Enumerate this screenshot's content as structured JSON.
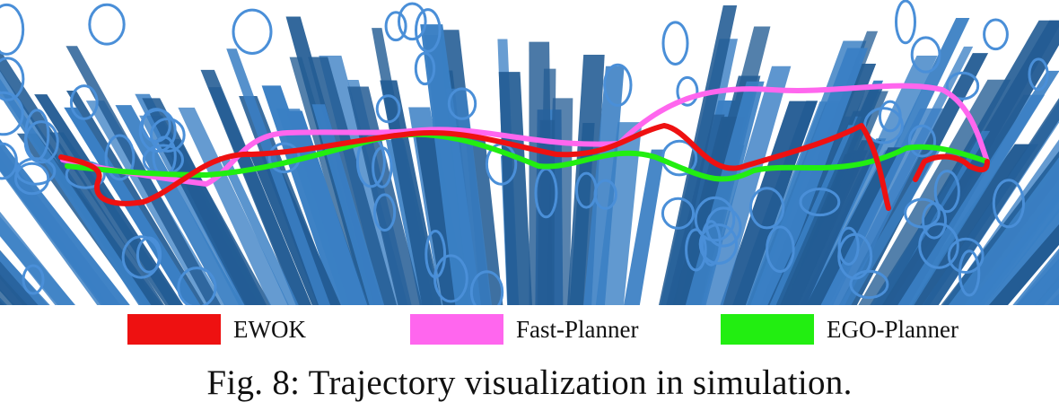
{
  "figure": {
    "legend": [
      {
        "label": "EWOK",
        "color": "#ee1111"
      },
      {
        "label": "Fast-Planner",
        "color": "#ff66ee"
      },
      {
        "label": "EGO-Planner",
        "color": "#22ee11"
      }
    ],
    "caption": "Fig. 8: Trajectory visualization in simulation.",
    "colors": {
      "obstacle": "#3a7fc4",
      "obstacle_dark": "#235c94",
      "background": "#ffffff"
    },
    "icons": [
      "column-obstacle",
      "ring-obstacle",
      "trajectory-line"
    ]
  }
}
